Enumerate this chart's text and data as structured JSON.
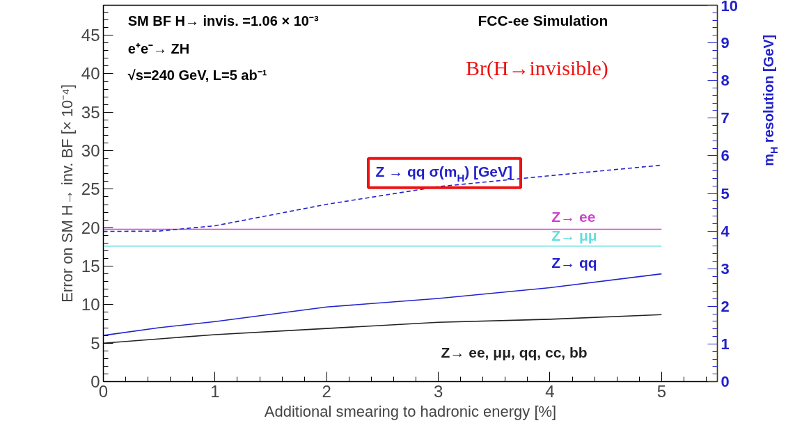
{
  "chart_data": {
    "type": "line",
    "xlabel": "Additional smearing to hadronic energy [%]",
    "ylabel": "Error on SM H→ inv. BF [× 10⁻⁴]",
    "y2label": "m$_{H}$ resolution [GeV]",
    "xlim": [
      0,
      5.5
    ],
    "xticks": [
      0,
      1,
      2,
      3,
      4,
      5
    ],
    "ylim": [
      0,
      48.9
    ],
    "yticks": [
      0,
      5,
      10,
      15,
      20,
      25,
      30,
      35,
      40,
      45
    ],
    "y2lim": [
      0,
      10
    ],
    "y2ticks": [
      0,
      1,
      2,
      3,
      4,
      5,
      6,
      7,
      8,
      9,
      10
    ],
    "grid": false,
    "legend": false,
    "marker": "none",
    "annotations": [
      "SM BF H→ invis. =1.06 × 10⁻³",
      "e⁺e⁻→ ZH",
      "√s=240 GeV, L=5 ab⁻¹",
      "FCC-ee Simulation",
      "Br(H→invisible)"
    ],
    "series": [
      {
        "name": "Z→ ee",
        "color": "#cc44cc",
        "x": [
          0,
          5
        ],
        "values": [
          19.8,
          19.8
        ]
      },
      {
        "name": "Z→ μμ",
        "color": "#66dddd",
        "x": [
          0,
          5
        ],
        "values": [
          17.6,
          17.6
        ]
      },
      {
        "name": "Z→ qq",
        "color": "#2222cc",
        "x": [
          0,
          0.5,
          1,
          2,
          3,
          4,
          5
        ],
        "values": [
          6.0,
          7.0,
          7.8,
          9.7,
          10.8,
          12.2,
          14.0
        ]
      },
      {
        "name": "Z→ ee, μμ, qq, cc, bb",
        "color": "#222222",
        "x": [
          0,
          1,
          2,
          3,
          4,
          5
        ],
        "values": [
          5.0,
          6.1,
          6.9,
          7.7,
          8.1,
          8.7
        ]
      },
      {
        "name": "Z → qq σ(m$_{H}$) [GeV]",
        "color": "#2222cc",
        "axis": "y2",
        "line_style": "dashed",
        "x": [
          0,
          0.5,
          1,
          2,
          3,
          4,
          5
        ],
        "values": [
          3.99,
          4.0,
          4.14,
          4.71,
          5.18,
          5.47,
          5.75
        ]
      }
    ]
  }
}
